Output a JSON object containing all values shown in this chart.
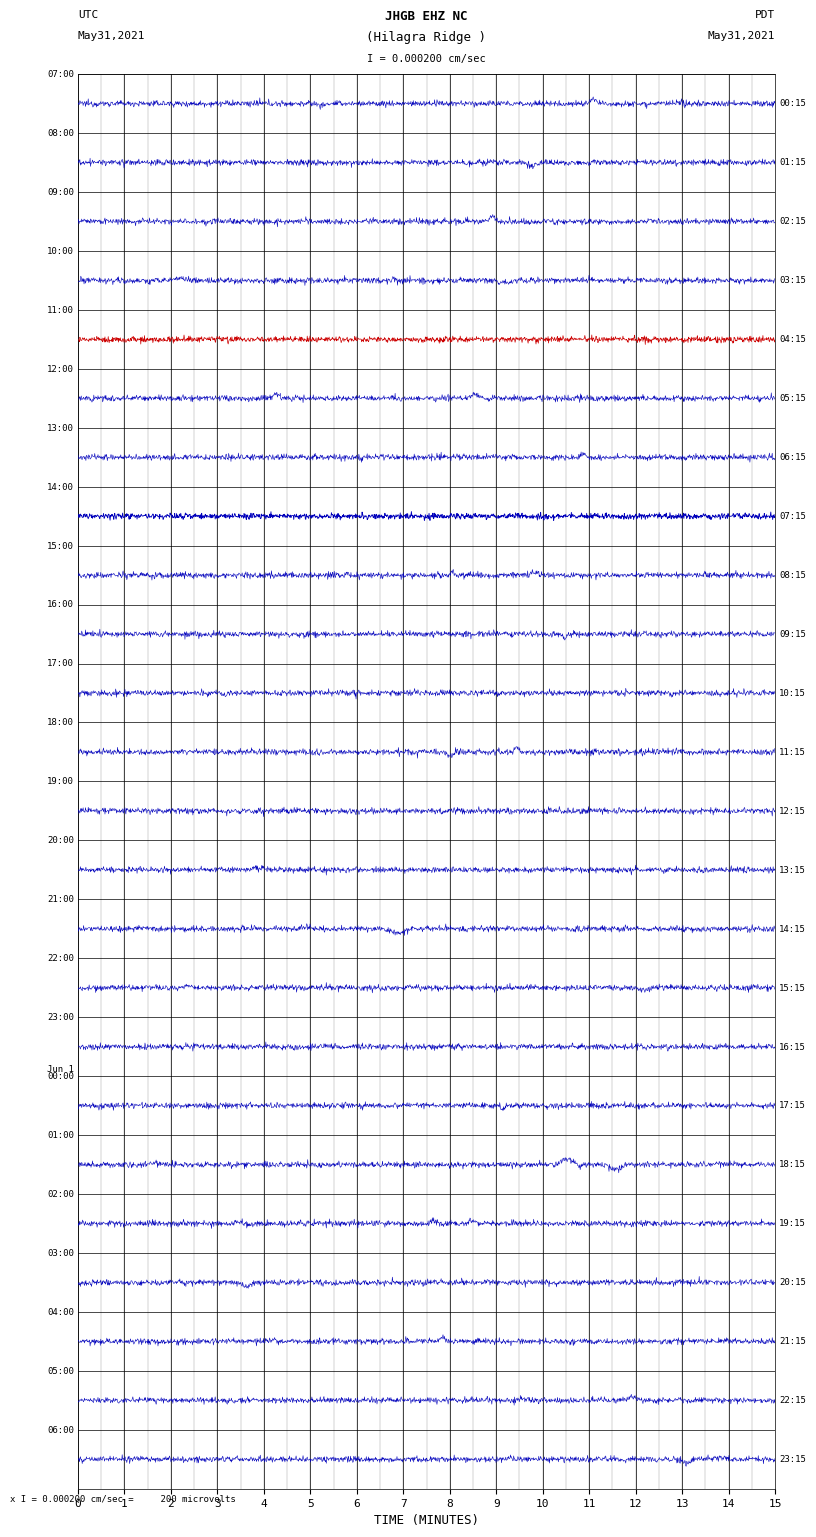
{
  "title_line1": "JHGB EHZ NC",
  "title_line2": "(Hilagra Ridge )",
  "scale_bar": "I = 0.000200 cm/sec",
  "left_label": "UTC",
  "left_date": "May31,2021",
  "right_label": "PDT",
  "right_date": "May31,2021",
  "bottom_label": "TIME (MINUTES)",
  "footer": "x I = 0.000200 cm/sec =     200 microvolts",
  "utc_labels": [
    "07:00",
    "08:00",
    "09:00",
    "10:00",
    "11:00",
    "12:00",
    "13:00",
    "14:00",
    "15:00",
    "16:00",
    "17:00",
    "18:00",
    "19:00",
    "20:00",
    "21:00",
    "22:00",
    "23:00",
    "Jun 1\n00:00",
    "01:00",
    "02:00",
    "03:00",
    "04:00",
    "05:00",
    "06:00"
  ],
  "pdt_labels": [
    "00:15",
    "01:15",
    "02:15",
    "03:15",
    "04:15",
    "05:15",
    "06:15",
    "07:15",
    "08:15",
    "09:15",
    "10:15",
    "11:15",
    "12:15",
    "13:15",
    "14:15",
    "15:15",
    "16:15",
    "17:15",
    "18:15",
    "19:15",
    "20:15",
    "21:15",
    "22:15",
    "23:15"
  ],
  "minutes": 15,
  "bg_color": "#ffffff",
  "trace_color_blue": "#0000bb",
  "trace_color_red": "#cc0000",
  "trace_color_green": "#007700",
  "noise_amplitude": 0.06
}
